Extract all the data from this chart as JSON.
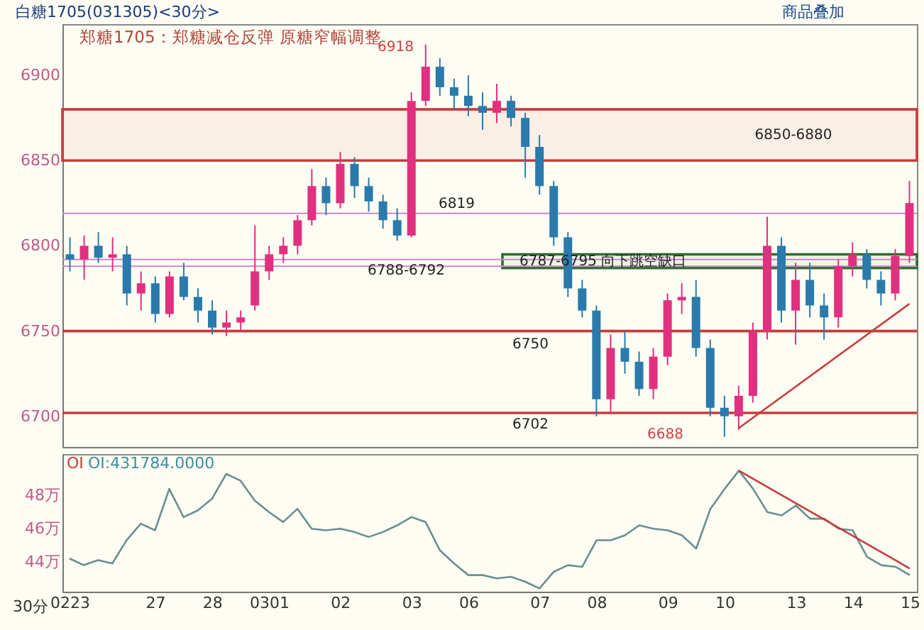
{
  "chart_data": [
    {
      "type": "candlestick",
      "title": "白糖1705(031305)<30分>",
      "subtitle": "郑糖1705：郑糖减仓反弹 原糖窄幅调整",
      "categories": [
        "0223",
        null,
        null,
        null,
        null,
        null,
        "27",
        null,
        null,
        null,
        "28",
        null,
        null,
        null,
        "0301",
        null,
        null,
        null,
        null,
        "02",
        null,
        null,
        null,
        null,
        "03",
        null,
        null,
        null,
        "06",
        null,
        null,
        null,
        null,
        "07",
        null,
        null,
        null,
        "08",
        null,
        null,
        null,
        null,
        "09",
        null,
        null,
        null,
        "10",
        null,
        null,
        null,
        null,
        "13",
        null,
        null,
        null,
        "14",
        null,
        null,
        null,
        "15"
      ],
      "ohlc": [
        [
          6795,
          6805,
          6785,
          6792
        ],
        [
          6792,
          6806,
          6780,
          6800
        ],
        [
          6800,
          6808,
          6790,
          6793
        ],
        [
          6793,
          6805,
          6785,
          6795
        ],
        [
          6795,
          6800,
          6765,
          6772
        ],
        [
          6772,
          6785,
          6762,
          6778
        ],
        [
          6778,
          6782,
          6755,
          6760
        ],
        [
          6760,
          6785,
          6758,
          6782
        ],
        [
          6782,
          6790,
          6768,
          6770
        ],
        [
          6770,
          6775,
          6755,
          6762
        ],
        [
          6762,
          6768,
          6748,
          6752
        ],
        [
          6752,
          6762,
          6747,
          6755
        ],
        [
          6755,
          6762,
          6750,
          6758
        ],
        [
          6765,
          6812,
          6762,
          6785
        ],
        [
          6785,
          6800,
          6780,
          6795
        ],
        [
          6795,
          6805,
          6790,
          6800
        ],
        [
          6800,
          6818,
          6795,
          6815
        ],
        [
          6815,
          6845,
          6812,
          6835
        ],
        [
          6835,
          6840,
          6818,
          6825
        ],
        [
          6825,
          6855,
          6822,
          6848
        ],
        [
          6848,
          6852,
          6828,
          6835
        ],
        [
          6835,
          6840,
          6820,
          6826
        ],
        [
          6826,
          6830,
          6810,
          6815
        ],
        [
          6815,
          6822,
          6803,
          6806
        ],
        [
          6806,
          6890,
          6805,
          6885
        ],
        [
          6885,
          6918,
          6882,
          6905
        ],
        [
          6905,
          6910,
          6888,
          6893
        ],
        [
          6893,
          6898,
          6880,
          6888
        ],
        [
          6888,
          6900,
          6876,
          6882
        ],
        [
          6882,
          6890,
          6868,
          6878
        ],
        [
          6878,
          6895,
          6872,
          6885
        ],
        [
          6885,
          6888,
          6870,
          6875
        ],
        [
          6875,
          6878,
          6840,
          6858
        ],
        [
          6858,
          6865,
          6830,
          6835
        ],
        [
          6835,
          6838,
          6800,
          6805
        ],
        [
          6805,
          6808,
          6770,
          6775
        ],
        [
          6775,
          6780,
          6758,
          6762
        ],
        [
          6762,
          6765,
          6700,
          6710
        ],
        [
          6710,
          6748,
          6702,
          6740
        ],
        [
          6740,
          6750,
          6725,
          6732
        ],
        [
          6732,
          6738,
          6712,
          6716
        ],
        [
          6716,
          6740,
          6710,
          6735
        ],
        [
          6735,
          6772,
          6730,
          6768
        ],
        [
          6768,
          6778,
          6760,
          6770
        ],
        [
          6770,
          6780,
          6735,
          6740
        ],
        [
          6740,
          6745,
          6700,
          6705
        ],
        [
          6705,
          6712,
          6688,
          6700
        ],
        [
          6700,
          6718,
          6692,
          6712
        ],
        [
          6712,
          6755,
          6708,
          6750
        ],
        [
          6750,
          6817,
          6745,
          6800
        ],
        [
          6800,
          6805,
          6755,
          6762
        ],
        [
          6762,
          6790,
          6742,
          6780
        ],
        [
          6780,
          6790,
          6758,
          6765
        ],
        [
          6765,
          6772,
          6745,
          6758
        ],
        [
          6758,
          6792,
          6752,
          6788
        ],
        [
          6788,
          6802,
          6782,
          6795
        ],
        [
          6795,
          6798,
          6775,
          6780
        ],
        [
          6780,
          6785,
          6765,
          6772
        ],
        [
          6772,
          6798,
          6768,
          6794
        ],
        [
          6794,
          6838,
          6790,
          6825
        ]
      ],
      "colors": [
        "#2a7aab",
        "#e0307f",
        "#2a7aab",
        "#e0307f",
        "#2a7aab",
        "#e0307f",
        "#2a7aab",
        "#e0307f",
        "#2a7aab",
        "#2a7aab",
        "#2a7aab",
        "#e0307f",
        "#e0307f",
        "#e0307f",
        "#e0307f",
        "#e0307f",
        "#e0307f",
        "#e0307f",
        "#2a7aab",
        "#e0307f",
        "#2a7aab",
        "#2a7aab",
        "#2a7aab",
        "#2a7aab",
        "#e0307f",
        "#e0307f",
        "#2a7aab",
        "#2a7aab",
        "#2a7aab",
        "#2a7aab",
        "#e0307f",
        "#2a7aab",
        "#2a7aab",
        "#2a7aab",
        "#2a7aab",
        "#2a7aab",
        "#2a7aab",
        "#2a7aab",
        "#e0307f",
        "#2a7aab",
        "#2a7aab",
        "#e0307f",
        "#e0307f",
        "#e0307f",
        "#2a7aab",
        "#2a7aab",
        "#2a7aab",
        "#e0307f",
        "#e0307f",
        "#e0307f",
        "#2a7aab",
        "#e0307f",
        "#2a7aab",
        "#2a7aab",
        "#e0307f",
        "#e0307f",
        "#2a7aab",
        "#2a7aab",
        "#e0307f",
        "#e0307f"
      ],
      "series": [
        {
          "type": "line",
          "color": "#c83c3c",
          "values": [
            null,
            null,
            null,
            null,
            null,
            null,
            null,
            null,
            null,
            null,
            null,
            null,
            null,
            null,
            null,
            null,
            null,
            null,
            null,
            null,
            null,
            null,
            null,
            null,
            null,
            null,
            null,
            null,
            null,
            null,
            null,
            null,
            null,
            null,
            null,
            null,
            null,
            null,
            null,
            null,
            null,
            null,
            null,
            null,
            null,
            null,
            null,
            6693,
            null,
            null,
            null,
            null,
            null,
            null,
            null,
            null,
            null,
            null,
            null,
            6766
          ]
        }
      ],
      "ylim": [
        6682,
        6930
      ],
      "yticks": [
        6700,
        6750,
        6800,
        6850,
        6900
      ],
      "tick_labels": "y",
      "ref_lines": [
        {
          "axis": "y",
          "value": 6819,
          "label": "6819",
          "color": "#cc88cc"
        },
        {
          "axis": "y",
          "value": 6788,
          "label": "6788-6792",
          "color": "#cc88cc"
        },
        {
          "axis": "y",
          "value": 6792,
          "color": "#cc88cc"
        },
        {
          "axis": "y",
          "value": 6750,
          "label": "6750",
          "color": "#c83c3c"
        },
        {
          "axis": "y",
          "value": 6702,
          "label": "6702",
          "color": "#c83c3c"
        }
      ],
      "bands": [
        {
          "axis": "y",
          "from": 6850,
          "to": 6880,
          "label": "6850-6880",
          "color": "#c83c3c"
        },
        {
          "axis": "y",
          "from": 6787,
          "to": 6795,
          "label": "6787-6795 向下跳空缺口",
          "color": "#2e6b2e"
        }
      ],
      "annotations": [
        "商品叠加",
        "6918",
        "6688"
      ]
    },
    {
      "type": "line",
      "categories": [
        "0223",
        null,
        null,
        null,
        null,
        null,
        "27",
        null,
        null,
        null,
        "28",
        null,
        null,
        null,
        "0301",
        null,
        null,
        null,
        null,
        "02",
        null,
        null,
        null,
        null,
        "03",
        null,
        null,
        null,
        "06",
        null,
        null,
        null,
        null,
        "07",
        null,
        null,
        null,
        "08",
        null,
        null,
        null,
        null,
        "09",
        null,
        null,
        null,
        "10",
        null,
        null,
        null,
        null,
        "13",
        null,
        null,
        null,
        "14",
        null,
        null,
        null,
        "15"
      ],
      "series": [
        {
          "color": "#6a8f8f",
          "values": [
            44.2,
            43.8,
            44.1,
            43.9,
            45.3,
            46.3,
            45.9,
            48.4,
            46.7,
            47.1,
            47.8,
            49.3,
            48.9,
            47.7,
            47.0,
            46.4,
            47.2,
            46.0,
            45.9,
            46.0,
            45.8,
            45.5,
            45.8,
            46.2,
            46.7,
            46.4,
            44.7,
            43.9,
            43.2,
            43.2,
            43.0,
            43.1,
            42.8,
            42.4,
            43.4,
            43.8,
            43.7,
            45.3,
            45.3,
            45.6,
            46.2,
            46.0,
            45.9,
            45.6,
            44.8,
            47.2,
            48.4,
            49.5,
            48.4,
            47.0,
            46.8,
            47.4,
            46.6,
            46.6,
            46.0,
            45.9,
            44.3,
            43.8,
            43.7,
            43.2
          ]
        },
        {
          "color": "#c83c3c",
          "values": [
            null,
            null,
            null,
            null,
            null,
            null,
            null,
            null,
            null,
            null,
            null,
            null,
            null,
            null,
            null,
            null,
            null,
            null,
            null,
            null,
            null,
            null,
            null,
            null,
            null,
            null,
            null,
            null,
            null,
            null,
            null,
            null,
            null,
            null,
            null,
            null,
            null,
            null,
            null,
            null,
            null,
            null,
            null,
            null,
            null,
            null,
            null,
            49.5,
            null,
            null,
            null,
            null,
            null,
            null,
            null,
            null,
            null,
            null,
            null,
            43.6
          ]
        }
      ],
      "ylim": [
        42.2,
        50.5
      ],
      "yticks": [
        {
          "value": 44,
          "label": "44万"
        },
        {
          "value": 46,
          "label": "46万"
        },
        {
          "value": 48,
          "label": "48万"
        }
      ],
      "annotations": [
        "30分",
        "OI",
        "OI:431784.0000"
      ]
    }
  ]
}
